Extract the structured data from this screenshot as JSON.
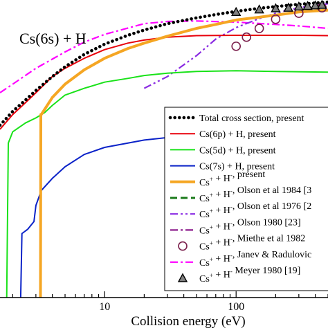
{
  "chart_data": {
    "type": "line",
    "title": "",
    "annotation": "Cs(6s) + H",
    "xlabel": "Collision energy (eV)",
    "ylabel": "",
    "xscale": "log",
    "yscale": "log",
    "xlim": [
      1.6,
      500
    ],
    "ylim": [
      0.5,
      60
    ],
    "x_ticks": [
      {
        "value": 10,
        "label": "10"
      },
      {
        "value": 100,
        "label": "100"
      }
    ],
    "grid": false,
    "legend_position": "lower-right",
    "series": [
      {
        "name": "Total cross section, present",
        "legend": [
          "Total cross section, present"
        ],
        "color": "#000000",
        "style": "dotted",
        "x": [
          1.6,
          2,
          2.5,
          3,
          4,
          5,
          7,
          10,
          15,
          20,
          30,
          50,
          70,
          100,
          150,
          200,
          300,
          500
        ],
        "y": [
          8,
          10,
          12,
          14,
          17.5,
          20.5,
          25,
          29.5,
          34,
          37,
          41,
          45,
          47.5,
          50,
          52.5,
          54,
          56,
          58
        ]
      },
      {
        "name": "Cs(6p) + H, present",
        "legend": [
          "Cs(6p) + H, present"
        ],
        "color": "#e8000b",
        "style": "solid",
        "x": [
          1.6,
          2,
          2.5,
          3,
          4,
          5,
          7,
          10,
          15,
          20,
          30,
          50,
          100,
          200,
          300,
          500
        ],
        "y": [
          7.5,
          9.5,
          11.5,
          13.5,
          17.5,
          20,
          23.5,
          27,
          30,
          31.5,
          33,
          33.8,
          34,
          34,
          34,
          33.8
        ]
      },
      {
        "name": "Cs(5d) + H, present",
        "legend": [
          "Cs(5d) + H, present"
        ],
        "color": "#19e219",
        "style": "solid",
        "x": [
          1.8,
          1.85,
          2,
          2.5,
          3,
          3.5,
          4,
          5,
          7,
          10,
          15,
          20,
          30,
          50,
          100,
          200,
          500
        ],
        "y": [
          0.5,
          6,
          7.2,
          8.3,
          9,
          9.8,
          11,
          13,
          14.5,
          16,
          17,
          17.8,
          18.5,
          19,
          19.2,
          19,
          18.8
        ]
      },
      {
        "name": "Cs(7s) + H, present",
        "legend": [
          "Cs(7s) + H, present"
        ],
        "color": "#0a22c8",
        "style": "solid",
        "x": [
          2.3,
          2.35,
          2.6,
          2.9,
          3.0,
          3.3,
          4,
          5,
          7,
          10,
          20,
          50,
          100,
          300,
          500
        ],
        "y": [
          0.5,
          1.4,
          1.5,
          1.7,
          2.2,
          2.8,
          3.4,
          4.1,
          5.0,
          5.6,
          6.3,
          6.9,
          7.2,
          7.3,
          7.3
        ]
      },
      {
        "name": "Cs+ + H-, present",
        "legend": [
          "Cs",
          "+",
          " + H",
          "-",
          ", present"
        ],
        "color": "#f5a623",
        "style": "solid",
        "x": [
          3.25,
          3.27,
          3.3,
          4,
          5,
          7,
          10,
          15,
          20,
          30,
          50,
          70,
          100,
          150,
          200,
          300,
          500
        ],
        "y": [
          0.5,
          9.5,
          9.5,
          12.5,
          15.5,
          19.5,
          23.5,
          27.5,
          30,
          33.5,
          38,
          40.5,
          43.5,
          45.5,
          47,
          49.5,
          51
        ]
      },
      {
        "name": "Cs+ + H-, Olson et al 1984",
        "legend": [
          "Cs",
          "+",
          " + H",
          "-",
          ", Olson et al 1984 [3"
        ],
        "color": "#1a7a1a",
        "style": "dashed",
        "x": [],
        "y": []
      },
      {
        "name": "Cs+ + H-, Olson et al 1976",
        "legend": [
          "Cs",
          "+",
          " + H",
          "-",
          ", Olson et al 1976 [2"
        ],
        "color": "#8a2be2",
        "style": "dashdotdot",
        "x": [
          20,
          30,
          50,
          70,
          100,
          150,
          200,
          300,
          500
        ],
        "y": [
          14.5,
          17.5,
          24.5,
          32,
          38.5,
          44.5,
          48.5,
          53,
          56.5
        ]
      },
      {
        "name": "Cs+ + H-, Olson 1980",
        "legend": [
          "Cs",
          "+",
          " + H",
          "-",
          ", Olson 1980 [23]"
        ],
        "color": "#8b1a8b",
        "style": "dashdot",
        "x": [],
        "y": []
      },
      {
        "name": "Cs+ + H-, Miethe et al 1982",
        "legend": [
          "Cs",
          "+",
          " + H",
          "-",
          ", Miethe et al 1982"
        ],
        "color": "#7a1f4b",
        "style": "open-circle",
        "x": [
          100,
          120,
          150,
          200,
          300,
          450
        ],
        "y": [
          28.5,
          33,
          38,
          44,
          48.5,
          53
        ]
      },
      {
        "name": "Cs+ + H-, Janev & Radulovic",
        "legend": [
          "Cs",
          "+",
          " + H",
          "-",
          ", Janev & Radulovic"
        ],
        "color": "#ff00ff",
        "style": "dashdot",
        "x": [
          1.6,
          2,
          3,
          5,
          7,
          10,
          20,
          30,
          50,
          100,
          200,
          300,
          500
        ],
        "y": [
          13.5,
          15.5,
          20,
          26,
          30.5,
          34.5,
          41,
          42.5,
          42.8,
          42,
          40.5,
          39.5,
          38
        ]
      },
      {
        "name": "Cs+ + H-, Meyer 1980",
        "legend": [
          "Cs",
          "+",
          " + H",
          "-",
          " Meyer 1980 [19]"
        ],
        "color": "#808080",
        "style": "triangle",
        "x": [
          100,
          150,
          200,
          250,
          300,
          350,
          400,
          450
        ],
        "y": [
          49.5,
          51.5,
          52.5,
          53,
          54,
          54.5,
          55,
          55.5
        ]
      }
    ]
  }
}
